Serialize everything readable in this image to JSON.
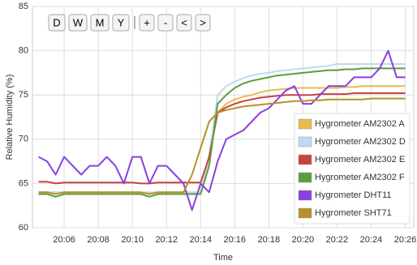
{
  "toolbar": {
    "buttons": [
      "D",
      "W",
      "M",
      "Y",
      "+",
      "-",
      "<",
      ">"
    ]
  },
  "chart_data": {
    "type": "line",
    "x_label": "Time",
    "y_label": "Relative Humidity (%)",
    "x": [
      364.5,
      365,
      365.5,
      366,
      366.5,
      367,
      367.5,
      368,
      368.5,
      369,
      369.5,
      370,
      370.5,
      371,
      371.5,
      372,
      372.5,
      373,
      373.5,
      374,
      374.5,
      375,
      375.5,
      376,
      376.5,
      377,
      377.5,
      378,
      378.5,
      379,
      379.5,
      380,
      380.5,
      381,
      381.5,
      382,
      382.5,
      383,
      383.5,
      384,
      384.5,
      385,
      385.5,
      386
    ],
    "xlim": [
      364.14,
      386.5
    ],
    "xticks": [
      {
        "value": 366,
        "label": "20:06"
      },
      {
        "value": 368,
        "label": "20:08"
      },
      {
        "value": 370,
        "label": "20:10"
      },
      {
        "value": 372,
        "label": "20:12"
      },
      {
        "value": 374,
        "label": "20:14"
      },
      {
        "value": 376,
        "label": "20:16"
      },
      {
        "value": 378,
        "label": "20:18"
      },
      {
        "value": 380,
        "label": "20:20"
      },
      {
        "value": 382,
        "label": "20:22"
      },
      {
        "value": 384,
        "label": "20:24"
      },
      {
        "value": 386,
        "label": "20:26"
      }
    ],
    "ylim": [
      60,
      85
    ],
    "yticks": [
      60,
      65,
      70,
      75,
      80,
      85
    ],
    "grid": true,
    "legend": "lower right",
    "series": [
      {
        "name": "Hygrometer AM2302 A",
        "color": "#e8bc4a",
        "values": [
          64,
          64,
          64,
          64,
          64,
          64,
          64,
          64,
          64,
          64,
          64,
          64,
          64,
          63.9,
          64,
          64,
          64,
          64,
          64,
          64,
          68,
          73,
          74,
          74.5,
          74.8,
          75,
          75.3,
          75.5,
          75.6,
          75.7,
          75.8,
          75.8,
          75.8,
          75.8,
          75.8,
          75.8,
          75.9,
          75.9,
          76,
          76,
          76,
          76,
          76,
          76
        ]
      },
      {
        "name": "Hygrometer AM2302 D",
        "color": "#bfd9f0",
        "values": [
          64,
          64,
          64,
          64,
          64,
          64,
          64,
          64,
          64,
          64,
          64,
          64,
          64,
          64,
          64,
          64,
          64,
          64,
          64,
          64,
          68,
          75,
          76,
          76.5,
          76.9,
          77.2,
          77.4,
          77.5,
          77.7,
          77.8,
          77.9,
          78,
          78.1,
          78.2,
          78.3,
          78.5,
          78.5,
          78.5,
          78.5,
          78.5,
          78.5,
          78.5,
          78.5,
          78.5
        ]
      },
      {
        "name": "Hygrometer AM2302 E",
        "color": "#c94040",
        "values": [
          65.2,
          65.2,
          65,
          65.1,
          65.1,
          65.1,
          65.1,
          65.1,
          65.1,
          65.1,
          65.1,
          65.1,
          65,
          65,
          65.1,
          65.1,
          65.1,
          65.1,
          65.1,
          65.1,
          68,
          73,
          73.6,
          74,
          74.3,
          74.5,
          74.7,
          74.8,
          74.9,
          75,
          75,
          75,
          75,
          75.1,
          75.1,
          75.1,
          75.1,
          75.2,
          75.2,
          75.2,
          75.2,
          75.2,
          75.2,
          75.2
        ]
      },
      {
        "name": "Hygrometer AM2302 F",
        "color": "#5a9e3c",
        "values": [
          63.8,
          63.8,
          63.5,
          63.8,
          63.8,
          63.8,
          63.8,
          63.8,
          63.8,
          63.8,
          63.8,
          63.8,
          63.8,
          63.5,
          63.8,
          63.8,
          63.8,
          63.8,
          63.8,
          63.8,
          67,
          74,
          75,
          75.8,
          76.3,
          76.6,
          76.8,
          77,
          77.2,
          77.3,
          77.4,
          77.5,
          77.6,
          77.7,
          77.8,
          77.8,
          77.9,
          77.9,
          78,
          78,
          78,
          78,
          78,
          78
        ]
      },
      {
        "name": "Hygrometer DHT11",
        "color": "#8a3fe0",
        "values": [
          68,
          67.5,
          66,
          68,
          67,
          66,
          67,
          67,
          68,
          67,
          65,
          68,
          68,
          65,
          67,
          67,
          66,
          65,
          62,
          65,
          64,
          67.5,
          70,
          70.5,
          71,
          72,
          73,
          73.5,
          74.5,
          75.5,
          76,
          74,
          74,
          75,
          76,
          76,
          76,
          77,
          77,
          77,
          78,
          80,
          77,
          77
        ]
      },
      {
        "name": "Hygrometer SHT71",
        "color": "#b8902a",
        "values": [
          64,
          64,
          63.8,
          64,
          64,
          64,
          64,
          64,
          64,
          64,
          64,
          64,
          64,
          63.8,
          64,
          64,
          64,
          64,
          66,
          69,
          72,
          73,
          73.3,
          73.5,
          73.7,
          73.8,
          73.9,
          74,
          74.1,
          74.2,
          74.3,
          74.3,
          74.4,
          74.4,
          74.5,
          74.5,
          74.5,
          74.5,
          74.5,
          74.6,
          74.6,
          74.6,
          74.6,
          74.6
        ]
      }
    ]
  }
}
